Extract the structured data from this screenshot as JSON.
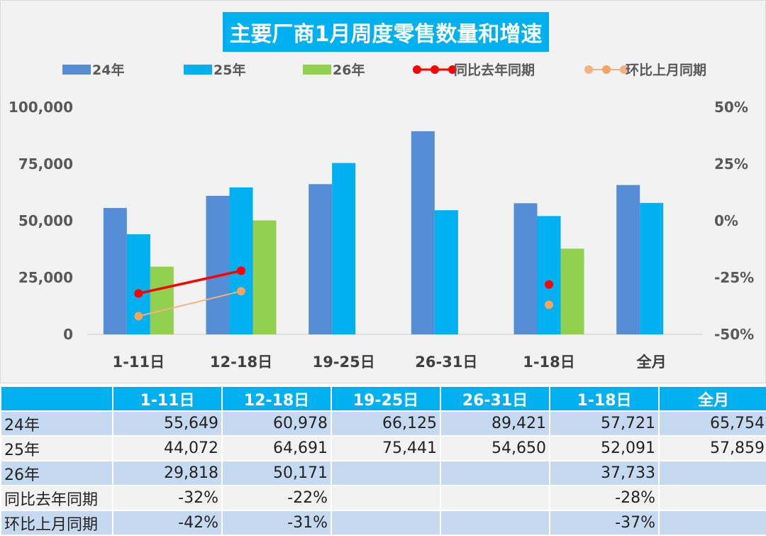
{
  "chart_data": {
    "type": "bar",
    "title": "主要厂商1月周度零售数量和增速",
    "categories": [
      "1-11日",
      "12-18日",
      "19-25日",
      "26-31日",
      "1-18日",
      "全月"
    ],
    "series": [
      {
        "name": "24年",
        "type": "bar",
        "color": "#558ed5",
        "values": [
          55649,
          60978,
          66125,
          89421,
          57721,
          65754
        ]
      },
      {
        "name": "25年",
        "type": "bar",
        "color": "#00b0f0",
        "values": [
          44072,
          64691,
          75441,
          54650,
          52091,
          57859
        ]
      },
      {
        "name": "26年",
        "type": "bar",
        "color": "#92d050",
        "values": [
          29818,
          50171,
          null,
          null,
          37733,
          null
        ]
      },
      {
        "name": "同比去年同期",
        "type": "line",
        "axis": "right",
        "color": "#ff0000",
        "values": [
          -32,
          -22,
          null,
          null,
          -28,
          null
        ],
        "labels": [
          "-32%",
          "-22%",
          "",
          "",
          "-28%",
          ""
        ]
      },
      {
        "name": "环比上月同期",
        "type": "line",
        "axis": "right",
        "color": "#f4b183",
        "values": [
          -42,
          -31,
          null,
          null,
          -37,
          null
        ],
        "labels": [
          "-42%",
          "-31%",
          "",
          "",
          "-37%",
          ""
        ]
      }
    ],
    "y_left": {
      "range": [
        0,
        100000
      ],
      "ticks": [
        "0",
        "25,000",
        "50,000",
        "75,000",
        "100,000"
      ]
    },
    "y_right": {
      "range": [
        -50,
        50
      ],
      "ticks": [
        "-50%",
        "-25%",
        "0%",
        "25%",
        "50%"
      ]
    },
    "legend": "top",
    "grid": false
  },
  "table": {
    "header": [
      "",
      "1-11日",
      "12-18日",
      "19-25日",
      "26-31日",
      "1-18日",
      "全月"
    ],
    "rows": [
      [
        "24年",
        "55,649",
        "60,978",
        "66,125",
        "89,421",
        "57,721",
        "65,754"
      ],
      [
        "25年",
        "44,072",
        "64,691",
        "75,441",
        "54,650",
        "52,091",
        "57,859"
      ],
      [
        "26年",
        "29,818",
        "50,171",
        "",
        "",
        "37,733",
        ""
      ],
      [
        "同比去年同期",
        "-32%",
        "-22%",
        "",
        "",
        "-28%",
        ""
      ],
      [
        "环比上月同期",
        "-42%",
        "-31%",
        "",
        "",
        "-37%",
        ""
      ]
    ]
  }
}
